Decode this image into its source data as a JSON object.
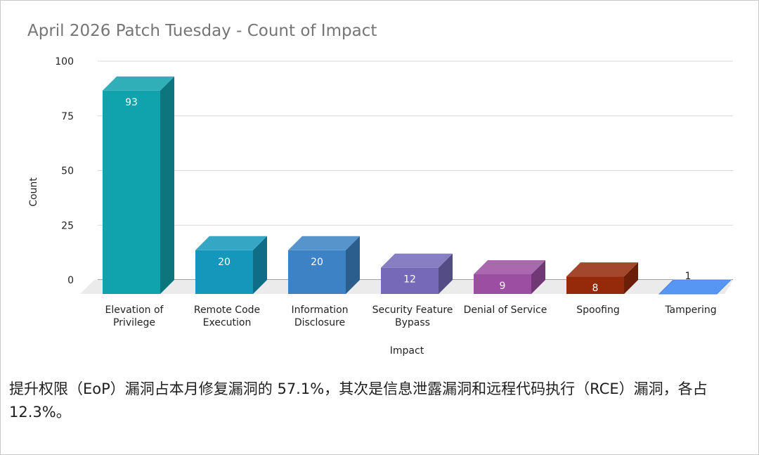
{
  "chart_data": {
    "type": "bar",
    "title": "April 2026 Patch Tuesday - Count of Impact",
    "xlabel": "Impact",
    "ylabel": "Count",
    "ylim": [
      0,
      100
    ],
    "yticks": [
      "0",
      "25",
      "50",
      "75",
      "100"
    ],
    "grid": true,
    "style": "3d",
    "categories": [
      [
        "Elevation of",
        "Privilege"
      ],
      [
        "Remote Code",
        "Execution"
      ],
      [
        "Information",
        "Disclosure"
      ],
      [
        "Security Feature",
        "Bypass"
      ],
      [
        "Denial of Service"
      ],
      [
        "Spoofing"
      ],
      [
        "Tampering"
      ]
    ],
    "values": [
      93,
      20,
      20,
      12,
      9,
      8,
      1
    ],
    "colors": [
      "#10a2ad",
      "#1597bc",
      "#3d82c4",
      "#7569b8",
      "#9c4fa2",
      "#952a0b",
      "#5896f4"
    ]
  },
  "caption": "提升权限（EoP）漏洞占本月修复漏洞的 57.1%，其次是信息泄露漏洞和远程代码执行（RCE）漏洞，各占 12.3%。"
}
